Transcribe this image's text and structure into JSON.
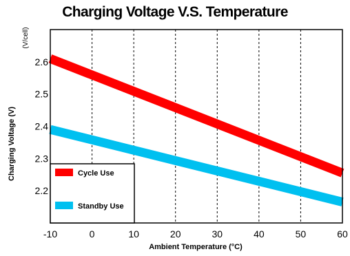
{
  "chart_data": {
    "type": "line",
    "title": "Charging Voltage V.S. Temperature",
    "xlabel": "Ambient Temperature (°C)",
    "ylabel": "Charging Voltage (V)",
    "yunit": "(V/cell)",
    "xlim": [
      -10,
      60
    ],
    "ylim": [
      2.1,
      2.7
    ],
    "xticks": [
      "-10",
      "0",
      "10",
      "20",
      "30",
      "40",
      "50",
      "60"
    ],
    "yticks": [
      "2.2",
      "2.3",
      "2.4",
      "2.5",
      "2.6"
    ],
    "grid": "vertical dashed",
    "legend_position": "bottom-left",
    "series": [
      {
        "name": "Cycle Use",
        "color": "#ff0000",
        "x": [
          -10,
          60
        ],
        "y": [
          2.61,
          2.255
        ]
      },
      {
        "name": "Standby Use",
        "color": "#00c0f0",
        "x": [
          -10,
          60
        ],
        "y": [
          2.39,
          2.165
        ]
      }
    ]
  }
}
